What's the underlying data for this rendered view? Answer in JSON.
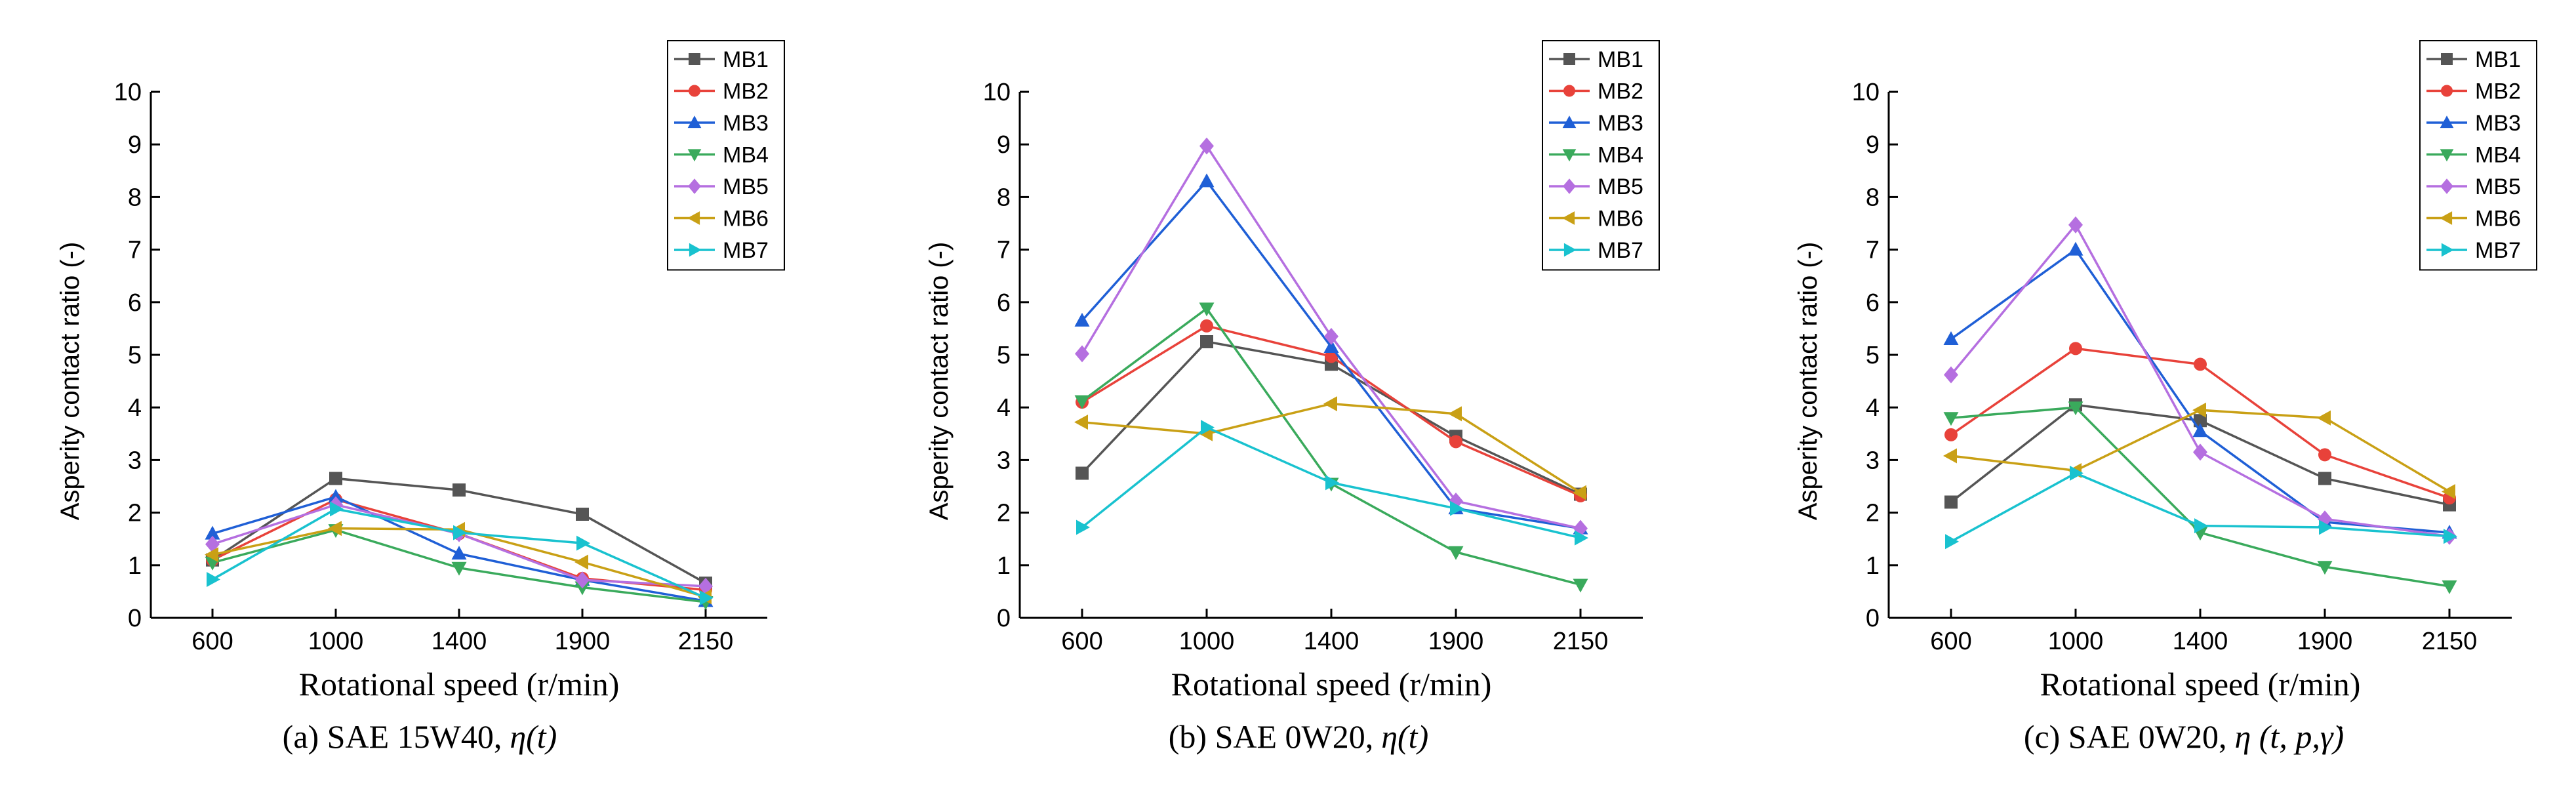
{
  "colors": {
    "MB1": "#555555",
    "MB2": "#e8423a",
    "MB3": "#1f5fd6",
    "MB4": "#3aaa5c",
    "MB5": "#b56fe0",
    "MB6": "#c9a015",
    "MB7": "#19c2cf"
  },
  "markers": {
    "MB1": "square",
    "MB2": "circle",
    "MB3": "triangle-up",
    "MB4": "triangle-down",
    "MB5": "diamond",
    "MB6": "triangle-left",
    "MB7": "triangle-right"
  },
  "chart_data": [
    {
      "type": "line",
      "caption_prefix": "(a) SAE 15W40,",
      "caption_symbol": "η(t)",
      "xlabel": "Rotational speed (r/min)",
      "ylabel": "Asperity contact ratio (-)",
      "categories": [
        "600",
        "1000",
        "1400",
        "1900",
        "2150"
      ],
      "ylim": [
        0,
        10
      ],
      "yticks": [
        "0",
        "1",
        "2",
        "3",
        "4",
        "5",
        "6",
        "7",
        "8",
        "9",
        "10"
      ],
      "legend_position": "top-right",
      "series": [
        {
          "name": "MB1",
          "values": [
            1.1,
            2.65,
            2.43,
            1.97,
            0.66
          ]
        },
        {
          "name": "MB2",
          "values": [
            1.1,
            2.25,
            1.6,
            0.75,
            0.53
          ]
        },
        {
          "name": "MB3",
          "values": [
            1.6,
            2.3,
            1.22,
            0.72,
            0.32
          ]
        },
        {
          "name": "MB4",
          "values": [
            1.05,
            1.67,
            0.95,
            0.58,
            0.3
          ]
        },
        {
          "name": "MB5",
          "values": [
            1.4,
            2.15,
            1.6,
            0.72,
            0.6
          ]
        },
        {
          "name": "MB6",
          "values": [
            1.2,
            1.7,
            1.68,
            1.06,
            0.4
          ]
        },
        {
          "name": "MB7",
          "values": [
            0.73,
            2.07,
            1.62,
            1.42,
            0.38
          ]
        }
      ]
    },
    {
      "type": "line",
      "caption_prefix": "(b) SAE 0W20,",
      "caption_symbol": "η(t)",
      "xlabel": "Rotational speed (r/min)",
      "ylabel": "Asperity contact ratio (-)",
      "categories": [
        "600",
        "1000",
        "1400",
        "1900",
        "2150"
      ],
      "ylim": [
        0,
        10
      ],
      "yticks": [
        "0",
        "1",
        "2",
        "3",
        "4",
        "5",
        "6",
        "7",
        "8",
        "9",
        "10"
      ],
      "legend_position": "top-right",
      "series": [
        {
          "name": "MB1",
          "values": [
            2.75,
            5.25,
            4.82,
            3.45,
            2.35
          ]
        },
        {
          "name": "MB2",
          "values": [
            4.1,
            5.55,
            4.97,
            3.35,
            2.32
          ]
        },
        {
          "name": "MB3",
          "values": [
            5.65,
            8.3,
            5.15,
            2.08,
            1.7
          ]
        },
        {
          "name": "MB4",
          "values": [
            4.12,
            5.88,
            2.55,
            1.25,
            0.63
          ]
        },
        {
          "name": "MB5",
          "values": [
            5.02,
            8.97,
            5.35,
            2.22,
            1.7
          ]
        },
        {
          "name": "MB6",
          "values": [
            3.72,
            3.5,
            4.07,
            3.88,
            2.38
          ]
        },
        {
          "name": "MB7",
          "values": [
            1.72,
            3.62,
            2.57,
            2.08,
            1.52
          ]
        }
      ]
    },
    {
      "type": "line",
      "caption_prefix": "(c) SAE 0W20,",
      "caption_symbol": "η (t, p,γ̇)",
      "xlabel": "Rotational speed (r/min)",
      "ylabel": "Asperity contact ratio (-)",
      "categories": [
        "600",
        "1000",
        "1400",
        "1900",
        "2150"
      ],
      "ylim": [
        0,
        10
      ],
      "yticks": [
        "0",
        "1",
        "2",
        "3",
        "4",
        "5",
        "6",
        "7",
        "8",
        "9",
        "10"
      ],
      "legend_position": "top-right",
      "series": [
        {
          "name": "MB1",
          "values": [
            2.2,
            4.05,
            3.75,
            2.65,
            2.15
          ]
        },
        {
          "name": "MB2",
          "values": [
            3.48,
            5.12,
            4.82,
            3.1,
            2.28
          ]
        },
        {
          "name": "MB3",
          "values": [
            5.3,
            7.0,
            3.55,
            1.82,
            1.62
          ]
        },
        {
          "name": "MB4",
          "values": [
            3.8,
            4.0,
            1.62,
            0.97,
            0.6
          ]
        },
        {
          "name": "MB5",
          "values": [
            4.62,
            7.47,
            3.15,
            1.88,
            1.55
          ]
        },
        {
          "name": "MB6",
          "values": [
            3.08,
            2.8,
            3.95,
            3.8,
            2.4
          ]
        },
        {
          "name": "MB7",
          "values": [
            1.45,
            2.75,
            1.75,
            1.72,
            1.55
          ]
        }
      ]
    }
  ]
}
